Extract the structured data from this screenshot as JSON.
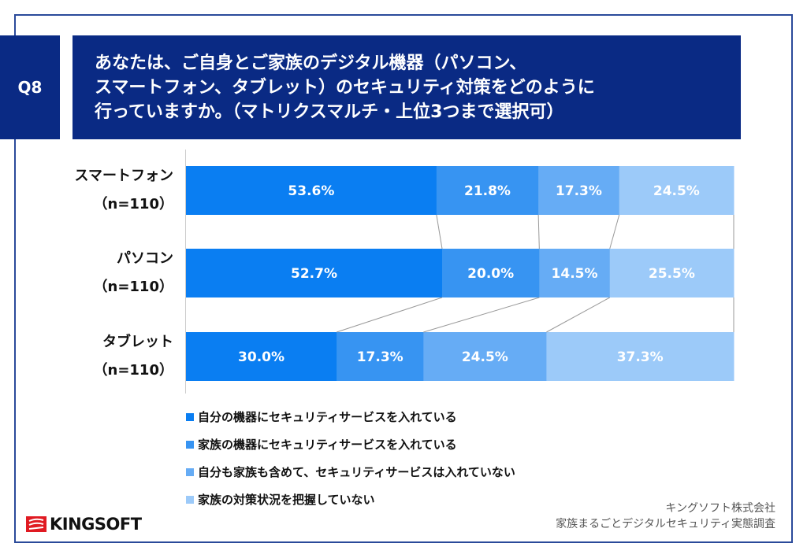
{
  "question": {
    "number": "Q8",
    "title_lines": [
      "あなたは、ご自身とご家族のデジタル機器（パソコン、",
      "スマートフォン、タブレット）のセキュリティ対策をどのように",
      "行っていますか。（マトリクスマルチ・上位3つまで選択可）"
    ]
  },
  "chart_data": {
    "type": "bar",
    "orientation": "horizontal-stacked-100",
    "categories": [
      {
        "name": "スマートフォン",
        "n": "（n=110）"
      },
      {
        "name": "パソコン",
        "n": "（n=110）"
      },
      {
        "name": "タブレット",
        "n": "（n=110）"
      }
    ],
    "series": [
      {
        "name": "自分の機器にセキュリティサービスを入れている",
        "color": "#0a7ef2",
        "values": [
          53.6,
          52.7,
          30.0
        ],
        "labels": [
          "53.6%",
          "52.7%",
          "30.0%"
        ]
      },
      {
        "name": "家族の機器にセキュリティサービスを入れている",
        "color": "#3794f2",
        "values": [
          21.8,
          20.0,
          17.3
        ],
        "labels": [
          "21.8%",
          "20.0%",
          "17.3%"
        ]
      },
      {
        "name": "自分も家族も含めて、セキュリティサービスは入れていない",
        "color": "#66acf5",
        "values": [
          17.3,
          14.5,
          24.5
        ],
        "labels": [
          "17.3%",
          "14.5%",
          "24.5%"
        ]
      },
      {
        "name": "家族の対策状況を把握していない",
        "color": "#9ccaf9",
        "values": [
          24.5,
          25.5,
          37.3
        ],
        "labels": [
          "24.5%",
          "25.5%",
          "37.3%"
        ]
      }
    ],
    "legend": "bottom-left"
  },
  "source": {
    "company": "キングソフト株式会社",
    "survey": "家族まるごとデジタルセキュリティ実態調査"
  },
  "logo": {
    "text": "KINGSOFT",
    "color": "#e01a22"
  },
  "colors": {
    "header": "#0a2a84",
    "frame": "#2a4a9a"
  }
}
